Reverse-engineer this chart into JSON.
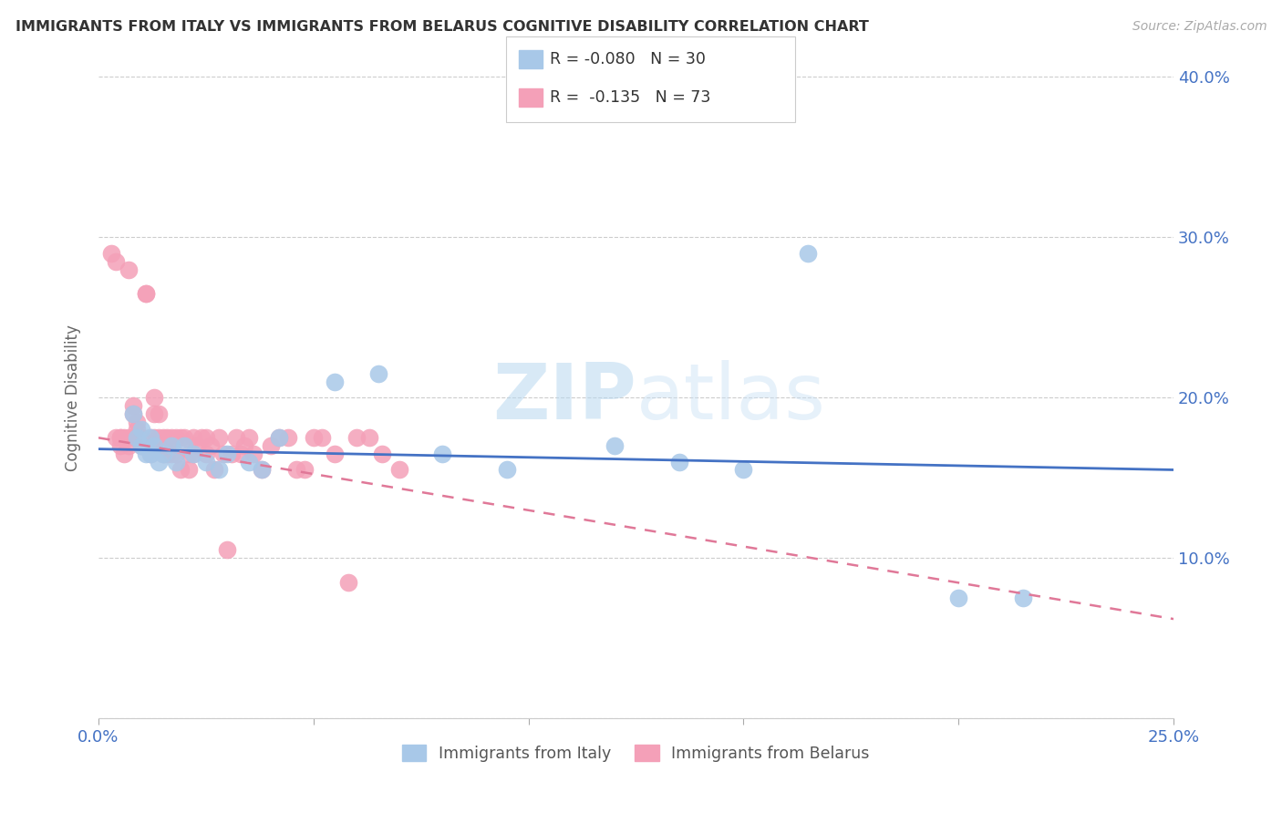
{
  "title": "IMMIGRANTS FROM ITALY VS IMMIGRANTS FROM BELARUS COGNITIVE DISABILITY CORRELATION CHART",
  "source": "Source: ZipAtlas.com",
  "ylabel": "Cognitive Disability",
  "x_min": 0.0,
  "x_max": 0.25,
  "y_min": 0.0,
  "y_max": 0.4,
  "x_ticks": [
    0.0,
    0.05,
    0.1,
    0.15,
    0.2,
    0.25
  ],
  "x_tick_labels": [
    "0.0%",
    "",
    "",
    "",
    "",
    "25.0%"
  ],
  "y_ticks": [
    0.0,
    0.1,
    0.2,
    0.3,
    0.4
  ],
  "y_tick_labels": [
    "",
    "10.0%",
    "20.0%",
    "30.0%",
    "40.0%"
  ],
  "italy_color": "#a8c8e8",
  "belarus_color": "#f4a0b8",
  "italy_label": "Immigrants from Italy",
  "belarus_label": "Immigrants from Belarus",
  "italy_R": "-0.080",
  "italy_N": "30",
  "belarus_R": "-0.135",
  "belarus_N": "73",
  "italy_line_color": "#4472c4",
  "belarus_line_color": "#e07898",
  "watermark_zip": "ZIP",
  "watermark_atlas": "atlas",
  "italy_line_x0": 0.0,
  "italy_line_y0": 0.168,
  "italy_line_x1": 0.25,
  "italy_line_y1": 0.155,
  "belarus_line_x0": 0.0,
  "belarus_line_y0": 0.175,
  "belarus_line_x1": 0.25,
  "belarus_line_y1": 0.062,
  "italy_scatter_x": [
    0.008,
    0.009,
    0.01,
    0.01,
    0.011,
    0.012,
    0.012,
    0.013,
    0.014,
    0.015,
    0.017,
    0.018,
    0.02,
    0.022,
    0.025,
    0.028,
    0.03,
    0.035,
    0.038,
    0.042,
    0.055,
    0.065,
    0.08,
    0.095,
    0.12,
    0.135,
    0.15,
    0.165,
    0.2,
    0.215
  ],
  "italy_scatter_y": [
    0.19,
    0.175,
    0.18,
    0.17,
    0.165,
    0.175,
    0.165,
    0.17,
    0.16,
    0.165,
    0.17,
    0.16,
    0.17,
    0.165,
    0.16,
    0.155,
    0.165,
    0.16,
    0.155,
    0.175,
    0.21,
    0.215,
    0.165,
    0.155,
    0.17,
    0.16,
    0.155,
    0.29,
    0.075,
    0.075
  ],
  "belarus_scatter_x": [
    0.003,
    0.004,
    0.004,
    0.005,
    0.005,
    0.005,
    0.006,
    0.006,
    0.007,
    0.007,
    0.007,
    0.008,
    0.008,
    0.009,
    0.009,
    0.009,
    0.01,
    0.01,
    0.011,
    0.011,
    0.012,
    0.012,
    0.012,
    0.013,
    0.013,
    0.013,
    0.014,
    0.014,
    0.015,
    0.015,
    0.015,
    0.016,
    0.016,
    0.017,
    0.017,
    0.018,
    0.018,
    0.019,
    0.019,
    0.02,
    0.021,
    0.021,
    0.022,
    0.022,
    0.023,
    0.024,
    0.025,
    0.025,
    0.026,
    0.027,
    0.028,
    0.029,
    0.03,
    0.031,
    0.032,
    0.033,
    0.034,
    0.035,
    0.036,
    0.038,
    0.04,
    0.042,
    0.044,
    0.046,
    0.048,
    0.05,
    0.052,
    0.055,
    0.058,
    0.06,
    0.063,
    0.066,
    0.07
  ],
  "belarus_scatter_y": [
    0.29,
    0.175,
    0.285,
    0.175,
    0.17,
    0.175,
    0.175,
    0.165,
    0.28,
    0.17,
    0.175,
    0.195,
    0.19,
    0.185,
    0.18,
    0.175,
    0.175,
    0.17,
    0.265,
    0.265,
    0.175,
    0.17,
    0.165,
    0.2,
    0.19,
    0.175,
    0.19,
    0.175,
    0.175,
    0.17,
    0.165,
    0.175,
    0.165,
    0.175,
    0.165,
    0.175,
    0.165,
    0.175,
    0.155,
    0.175,
    0.165,
    0.155,
    0.175,
    0.165,
    0.17,
    0.175,
    0.175,
    0.165,
    0.17,
    0.155,
    0.175,
    0.165,
    0.105,
    0.165,
    0.175,
    0.165,
    0.17,
    0.175,
    0.165,
    0.155,
    0.17,
    0.175,
    0.175,
    0.155,
    0.155,
    0.175,
    0.175,
    0.165,
    0.085,
    0.175,
    0.175,
    0.165,
    0.155
  ]
}
